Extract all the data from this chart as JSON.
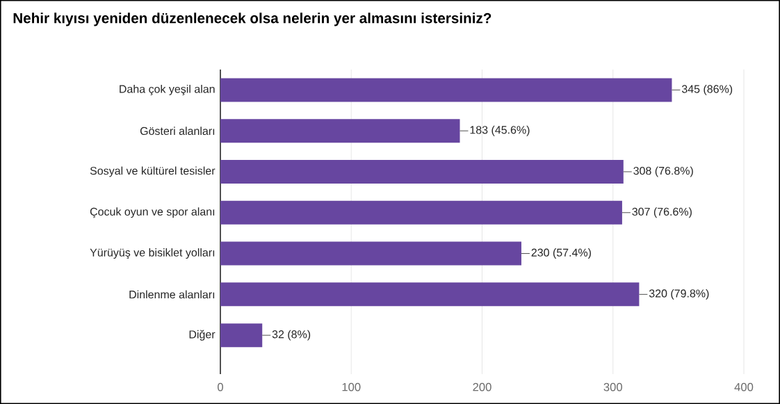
{
  "chart_data": {
    "type": "bar",
    "orientation": "horizontal",
    "title": "Nehir kıyısı yeniden düzenlenecek olsa nelerin yer almasını istersiniz?",
    "categories": [
      "Daha çok yeşil alan",
      "Gösteri alanları",
      "Sosyal ve kültürel tesisler",
      "Çocuk oyun ve spor alanı",
      "Yürüyüş ve bisiklet yolları",
      "Dinlenme alanları",
      "Diğer"
    ],
    "values": [
      345,
      183,
      308,
      307,
      230,
      320,
      32
    ],
    "value_labels": [
      "345 (86%)",
      "183 (45.6%)",
      "308 (76.8%)",
      "307 (76.6%)",
      "230 (57.4%)",
      "320 (79.8%)",
      "32 (8%)"
    ],
    "color": "#6746a0",
    "xlim": [
      0,
      400
    ],
    "xticks": [
      0,
      100,
      200,
      300,
      400
    ],
    "grid": "x"
  }
}
